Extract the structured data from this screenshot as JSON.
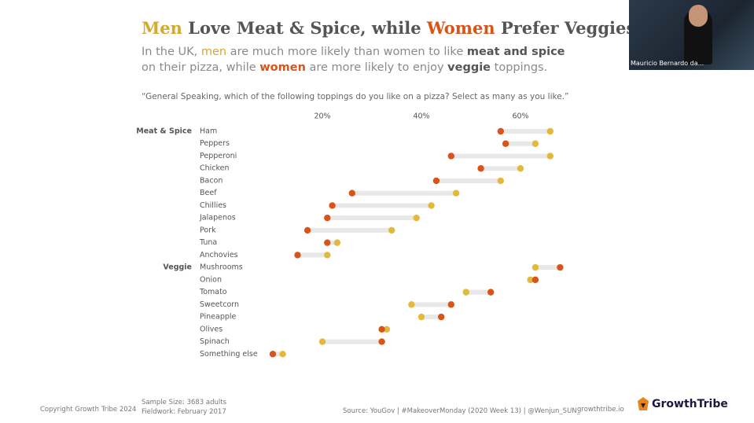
{
  "chart_data": {
    "type": "dumbbell",
    "title_parts": [
      "Men",
      " Love Meat & Spice, while ",
      "Women",
      " Prefer Veggies"
    ],
    "subtitle_parts": [
      "In the UK, ",
      "men",
      " are much more likely than women to like ",
      "meat and spice",
      " on their pizza, while ",
      "women",
      " are more likely to enjoy ",
      "veggie",
      " toppings."
    ],
    "question": "“General Speaking, which of the following toppings do you like on a pizza? Select as many as you like.”",
    "categories": [
      "Ham",
      "Peppers",
      "Pepperoni",
      "Chicken",
      "Bacon",
      "Beef",
      "Chillies",
      "Jalapenos",
      "Pork",
      "Tuna",
      "Anchovies",
      "Mushrooms",
      "Onion",
      "Tomato",
      "Sweetcorn",
      "Pineapple",
      "Olives",
      "Spinach",
      "Something else"
    ],
    "group_labels": [
      "Meat & Spice",
      null,
      null,
      null,
      null,
      null,
      null,
      null,
      null,
      null,
      null,
      "Veggie",
      null,
      null,
      null,
      null,
      null,
      null,
      null
    ],
    "series": [
      {
        "color": "#e2b93b",
        "values": [
          66,
          63,
          66,
          60,
          56,
          47,
          42,
          39,
          34,
          23,
          21,
          63,
          62,
          49,
          38,
          40,
          33,
          20,
          12
        ]
      },
      {
        "color": "#d9541a",
        "values": [
          56,
          57,
          46,
          52,
          43,
          26,
          22,
          21,
          17,
          21,
          15,
          68,
          63,
          54,
          46,
          44,
          32,
          32,
          10
        ]
      }
    ],
    "xlim": [
      0,
      70
    ],
    "xticks": [
      {
        "value": 20,
        "label": "20%"
      },
      {
        "value": 40,
        "label": "40%"
      },
      {
        "value": 60,
        "label": "60%"
      }
    ]
  },
  "footer": {
    "copyright": "Copyright Growth Tribe 2024",
    "sample": "Sample Size: 3683 adults",
    "fieldwork": "Fieldwork: February 2017",
    "source": "Source: YouGov | #MakeoverMonday (2020 Week 13) | @Wenjun_SUN_",
    "site": "growthtribe.io",
    "logo": "GrowthTribe"
  },
  "webcam": {
    "name": "Mauricio Bernardo da..."
  }
}
